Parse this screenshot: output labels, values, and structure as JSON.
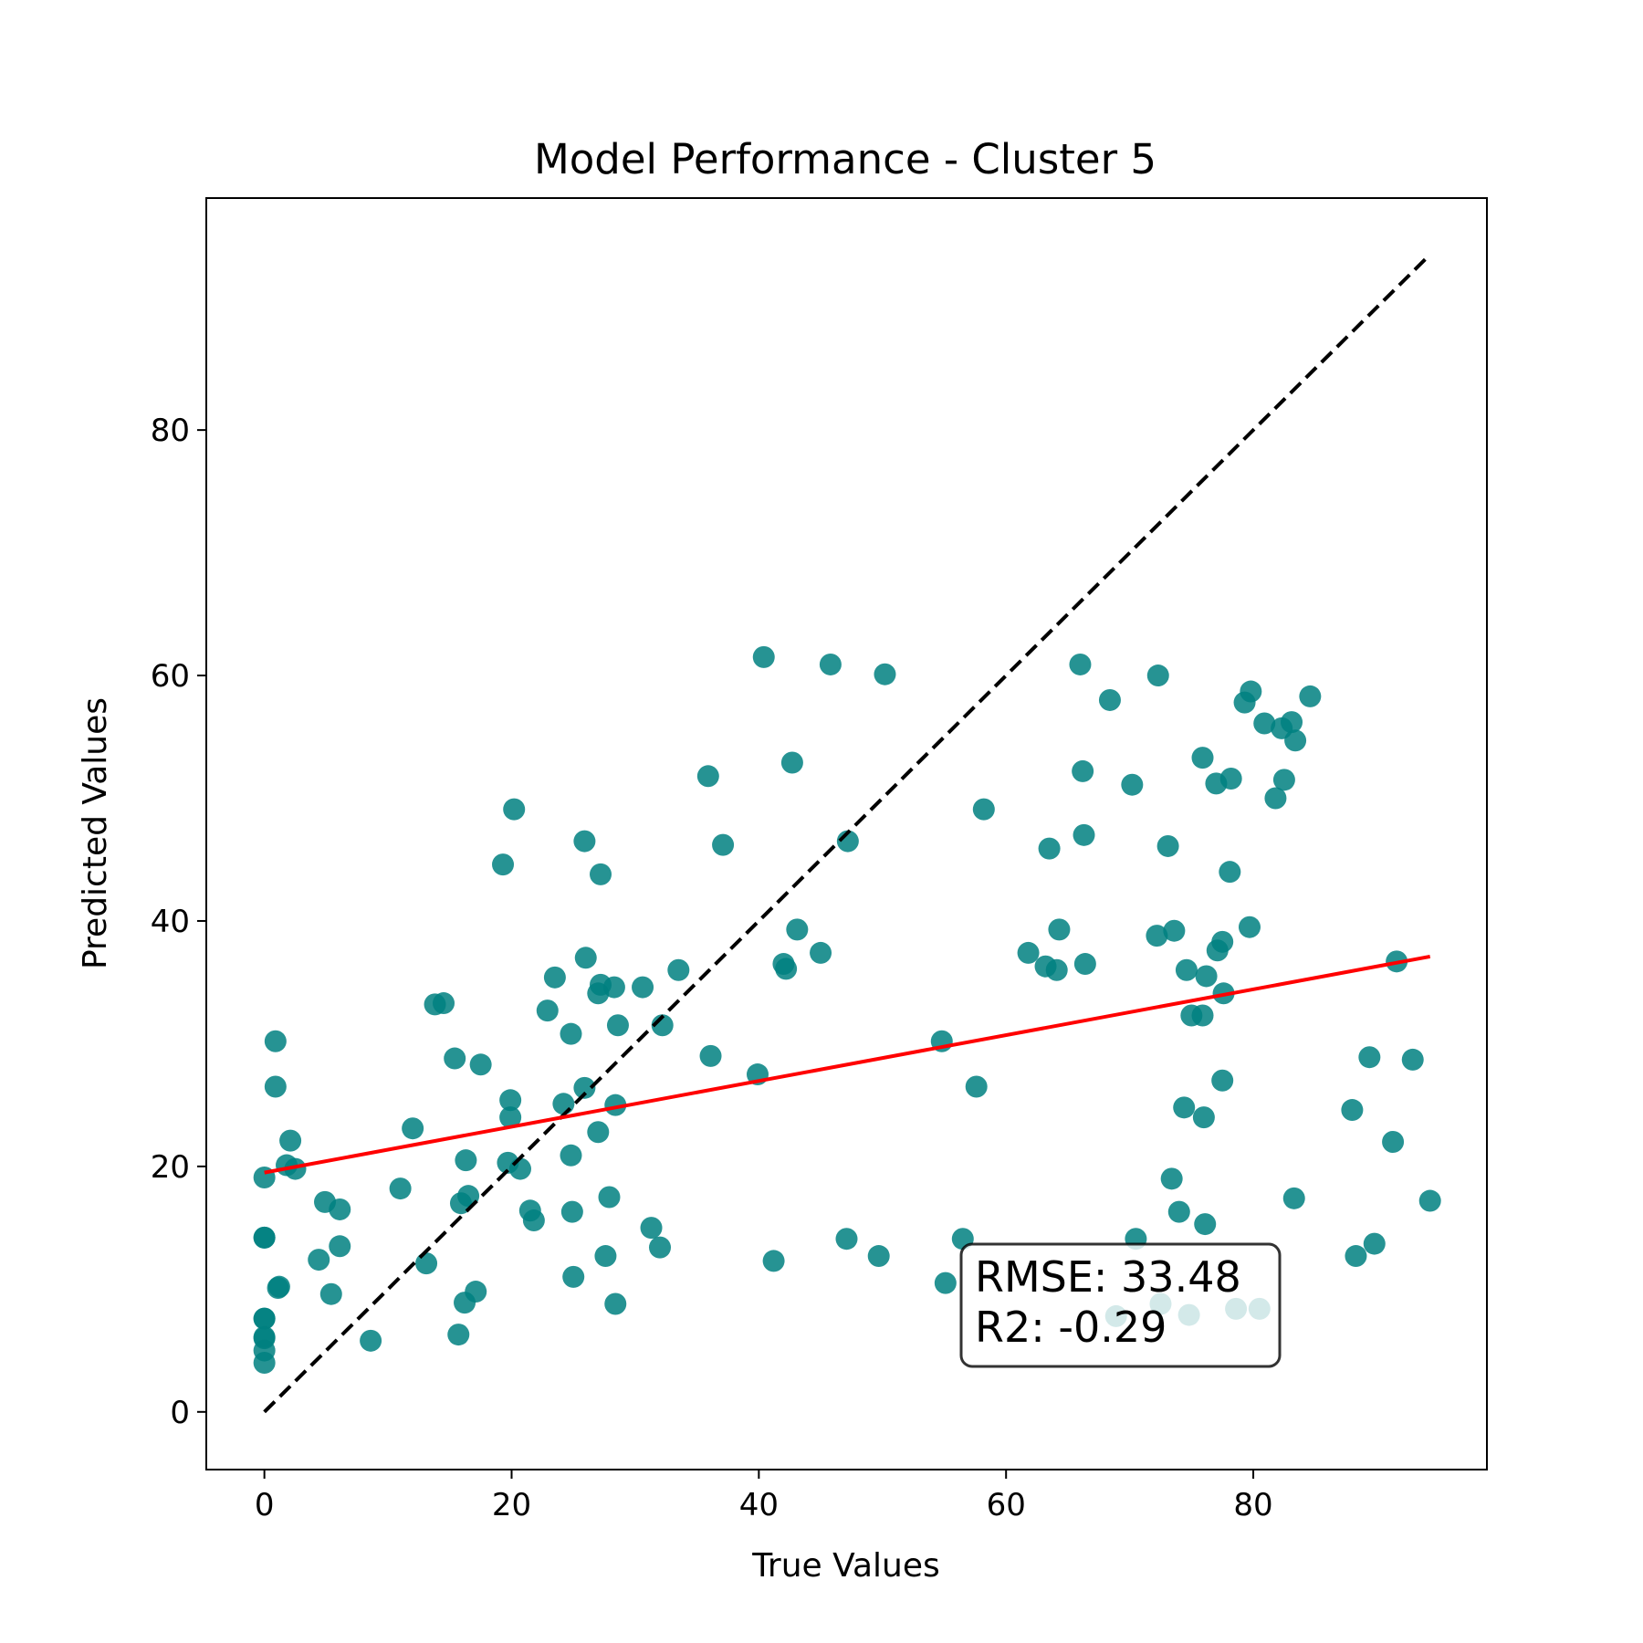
{
  "chart_data": {
    "type": "scatter",
    "title": "Model Performance - Cluster 5",
    "xlabel": "True Values",
    "ylabel": "Predicted Values",
    "xlim": [
      -4.7,
      98.9
    ],
    "ylim": [
      -4.7,
      98.9
    ],
    "xticks": [
      0,
      20,
      40,
      60,
      80
    ],
    "yticks": [
      0,
      20,
      40,
      60,
      80
    ],
    "grid": false,
    "colors": {
      "points": "#008080",
      "fit_line": "#ff0000",
      "ideal_line": "#000000"
    },
    "stats": {
      "rmse": "RMSE: 33.48",
      "r2": "R2: -0.29"
    },
    "ideal_line": {
      "x": [
        0,
        94.3
      ],
      "y": [
        0,
        94.3
      ]
    },
    "fit_line": {
      "x": [
        0,
        94.3
      ],
      "y": [
        19.5,
        37.1
      ]
    },
    "points": [
      [
        0,
        19.1
      ],
      [
        0,
        14.2
      ],
      [
        0,
        14.2
      ],
      [
        0,
        7.6
      ],
      [
        0,
        7.6
      ],
      [
        0,
        6.1
      ],
      [
        0,
        6.0
      ],
      [
        0,
        5.0
      ],
      [
        0,
        4.0
      ],
      [
        0.9,
        26.5
      ],
      [
        0.9,
        30.2
      ],
      [
        1.2,
        10.2
      ],
      [
        1.1,
        10.1
      ],
      [
        1.8,
        20.1
      ],
      [
        2.1,
        22.1
      ],
      [
        2.5,
        19.8
      ],
      [
        4.4,
        12.4
      ],
      [
        4.9,
        17.1
      ],
      [
        5.4,
        9.6
      ],
      [
        6.1,
        16.5
      ],
      [
        6.1,
        13.5
      ],
      [
        8.6,
        5.8
      ],
      [
        11.0,
        18.2
      ],
      [
        12.0,
        23.1
      ],
      [
        13.1,
        12.1
      ],
      [
        13.8,
        33.2
      ],
      [
        14.5,
        33.3
      ],
      [
        15.4,
        28.8
      ],
      [
        15.7,
        6.3
      ],
      [
        15.9,
        17.0
      ],
      [
        16.2,
        8.9
      ],
      [
        16.3,
        20.5
      ],
      [
        16.5,
        17.6
      ],
      [
        17.1,
        9.8
      ],
      [
        17.5,
        28.3
      ],
      [
        19.3,
        44.6
      ],
      [
        19.7,
        20.3
      ],
      [
        19.9,
        24.0
      ],
      [
        19.9,
        25.4
      ],
      [
        20.2,
        49.1
      ],
      [
        20.7,
        19.8
      ],
      [
        21.5,
        16.4
      ],
      [
        21.8,
        15.6
      ],
      [
        22.9,
        32.7
      ],
      [
        23.5,
        35.4
      ],
      [
        24.2,
        25.1
      ],
      [
        24.8,
        30.8
      ],
      [
        24.8,
        20.9
      ],
      [
        24.9,
        16.3
      ],
      [
        25.0,
        11.0
      ],
      [
        25.9,
        46.5
      ],
      [
        25.9,
        26.4
      ],
      [
        26.0,
        37.0
      ],
      [
        27.0,
        22.8
      ],
      [
        27.0,
        34.1
      ],
      [
        27.2,
        43.8
      ],
      [
        27.2,
        34.8
      ],
      [
        27.6,
        12.7
      ],
      [
        27.9,
        17.5
      ],
      [
        28.3,
        34.6
      ],
      [
        28.4,
        8.8
      ],
      [
        28.4,
        25.0
      ],
      [
        28.6,
        31.5
      ],
      [
        30.6,
        34.6
      ],
      [
        31.3,
        15.0
      ],
      [
        32.0,
        13.4
      ],
      [
        32.2,
        31.5
      ],
      [
        33.5,
        36.0
      ],
      [
        35.9,
        51.8
      ],
      [
        36.1,
        29.0
      ],
      [
        37.1,
        46.2
      ],
      [
        39.9,
        27.5
      ],
      [
        40.4,
        61.5
      ],
      [
        41.2,
        12.3
      ],
      [
        42.0,
        36.5
      ],
      [
        42.2,
        36.1
      ],
      [
        42.7,
        52.9
      ],
      [
        43.1,
        39.3
      ],
      [
        45.0,
        37.4
      ],
      [
        45.8,
        60.9
      ],
      [
        47.1,
        14.1
      ],
      [
        47.2,
        46.5
      ],
      [
        49.7,
        12.7
      ],
      [
        50.2,
        60.1
      ],
      [
        54.8,
        30.2
      ],
      [
        55.1,
        10.5
      ],
      [
        56.5,
        14.1
      ],
      [
        57.6,
        26.5
      ],
      [
        58.2,
        49.1
      ],
      [
        61.8,
        37.4
      ],
      [
        63.2,
        36.3
      ],
      [
        63.5,
        45.9
      ],
      [
        64.1,
        36.0
      ],
      [
        64.3,
        39.3
      ],
      [
        66.0,
        60.9
      ],
      [
        66.2,
        52.2
      ],
      [
        66.3,
        47.0
      ],
      [
        66.4,
        36.5
      ],
      [
        68.4,
        58.0
      ],
      [
        68.9,
        7.8
      ],
      [
        70.2,
        51.1
      ],
      [
        70.5,
        14.1
      ],
      [
        72.2,
        38.8
      ],
      [
        72.3,
        60.0
      ],
      [
        72.5,
        8.8
      ],
      [
        73.1,
        46.1
      ],
      [
        73.4,
        19.0
      ],
      [
        73.6,
        39.2
      ],
      [
        74.0,
        16.3
      ],
      [
        74.4,
        24.8
      ],
      [
        74.6,
        36.0
      ],
      [
        74.8,
        7.9
      ],
      [
        75.0,
        32.3
      ],
      [
        75.9,
        32.3
      ],
      [
        75.9,
        53.3
      ],
      [
        76.0,
        24.0
      ],
      [
        76.1,
        15.3
      ],
      [
        76.2,
        35.5
      ],
      [
        77.0,
        51.2
      ],
      [
        77.1,
        37.6
      ],
      [
        77.5,
        38.3
      ],
      [
        77.5,
        27.0
      ],
      [
        77.6,
        34.1
      ],
      [
        78.1,
        44.0
      ],
      [
        78.2,
        51.6
      ],
      [
        78.6,
        8.4
      ],
      [
        79.3,
        57.8
      ],
      [
        79.7,
        39.5
      ],
      [
        79.8,
        58.7
      ],
      [
        80.5,
        8.4
      ],
      [
        80.9,
        56.1
      ],
      [
        81.8,
        50.0
      ],
      [
        82.3,
        55.7
      ],
      [
        82.5,
        51.5
      ],
      [
        83.1,
        56.2
      ],
      [
        83.3,
        17.4
      ],
      [
        83.4,
        54.7
      ],
      [
        84.6,
        58.3
      ],
      [
        88.0,
        24.6
      ],
      [
        88.3,
        12.7
      ],
      [
        89.4,
        28.9
      ],
      [
        89.8,
        13.7
      ],
      [
        91.3,
        22.0
      ],
      [
        91.6,
        36.7
      ],
      [
        92.9,
        28.7
      ],
      [
        94.3,
        17.2
      ]
    ]
  }
}
